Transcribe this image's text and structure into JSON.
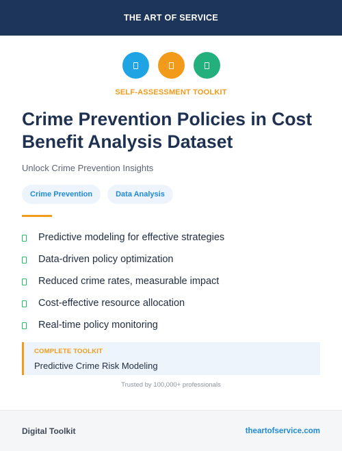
{
  "header": {
    "brand": "THE ART OF SERVICE",
    "background": "#1e355a"
  },
  "icons": [
    {
      "name": "document-icon",
      "color": "#1ea4e3"
    },
    {
      "name": "document-icon",
      "color": "#f29a1a"
    },
    {
      "name": "document-icon",
      "color": "#23b07d"
    }
  ],
  "eyebrow": "SELF-ASSESSMENT TOOLKIT",
  "title": "Crime Prevention Policies in Cost Benefit Analysis Dataset",
  "subtitle": "Unlock Crime Prevention Insights",
  "tags": [
    "Crime Prevention",
    "Data Analysis"
  ],
  "features": [
    "Predictive modeling for effective strategies",
    "Data-driven policy optimization",
    "Reduced crime rates, measurable impact",
    "Cost-effective resource allocation",
    "Real-time policy monitoring"
  ],
  "toolkit": {
    "label": "COMPLETE TOOLKIT",
    "item": "Predictive Crime Risk Modeling"
  },
  "trusted": "Trusted by 100,000+ professionals",
  "footer": {
    "left": "Digital Toolkit",
    "right": "theartofservice.com"
  },
  "colors": {
    "accent": "#f29a1a",
    "link": "#1f8ad6",
    "check": "#2bb673"
  }
}
